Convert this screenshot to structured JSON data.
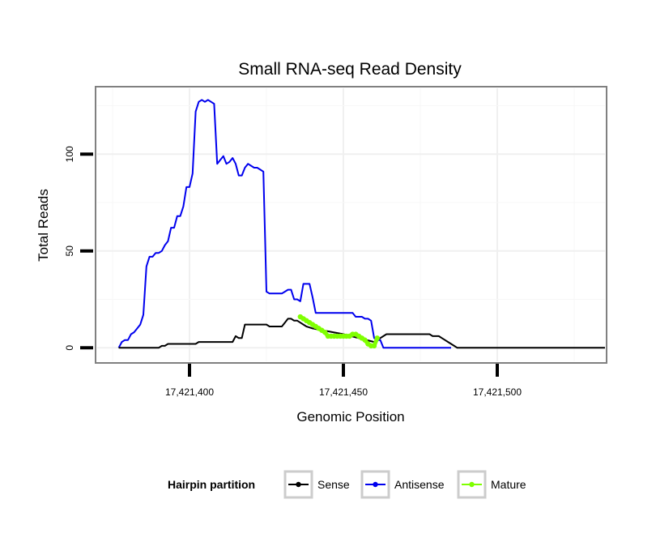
{
  "chart_data": {
    "type": "line",
    "title": "Small RNA-seq Read Density",
    "xlabel": "Genomic Position",
    "ylabel": "Total Reads",
    "xlim": [
      17421370,
      17421535
    ],
    "ylim": [
      -7,
      134
    ],
    "xticks": [
      17421400,
      17421450,
      17421500
    ],
    "xtick_labels": [
      "17,421,400",
      "17,421,450",
      "17,421,500"
    ],
    "yticks": [
      0,
      50,
      100
    ],
    "ytick_labels": [
      "0",
      "50",
      "100"
    ],
    "grid": true,
    "legend": {
      "title": "Hairpin partition",
      "position": "bottom",
      "entries": [
        {
          "name": "Sense",
          "color": "#000000"
        },
        {
          "name": "Antisense",
          "color": "#0000ee"
        },
        {
          "name": "Mature",
          "color": "#7fff00"
        }
      ]
    },
    "series": [
      {
        "name": "Antisense",
        "color": "#0000ee",
        "x": [
          17421377,
          17421378,
          17421379,
          17421380,
          17421381,
          17421382,
          17421383,
          17421384,
          17421385,
          17421386,
          17421387,
          17421388,
          17421389,
          17421390,
          17421391,
          17421392,
          17421393,
          17421394,
          17421395,
          17421396,
          17421397,
          17421398,
          17421399,
          17421400,
          17421401,
          17421402,
          17421403,
          17421404,
          17421405,
          17421406,
          17421407,
          17421408,
          17421409,
          17421410,
          17421411,
          17421412,
          17421413,
          17421414,
          17421415,
          17421416,
          17421417,
          17421418,
          17421419,
          17421420,
          17421421,
          17421422,
          17421423,
          17421424,
          17421425,
          17421426,
          17421427,
          17421428,
          17421429,
          17421430,
          17421431,
          17421432,
          17421433,
          17421434,
          17421435,
          17421436,
          17421437,
          17421438,
          17421439,
          17421440,
          17421441,
          17421442,
          17421443,
          17421444,
          17421445,
          17421446,
          17421447,
          17421448,
          17421449,
          17421450,
          17421451,
          17421452,
          17421453,
          17421454,
          17421455,
          17421456,
          17421457,
          17421458,
          17421459,
          17421460,
          17421461,
          17421462,
          17421463,
          17421464,
          17421465,
          17421466,
          17421467,
          17421468,
          17421469,
          17421470,
          17421471,
          17421472,
          17421473,
          17421474,
          17421475,
          17421476,
          17421477,
          17421478,
          17421479,
          17421480,
          17421481,
          17421482,
          17421483,
          17421484,
          17421485
        ],
        "y": [
          0,
          3,
          4,
          4,
          7,
          8,
          10,
          12,
          17,
          42,
          47,
          47,
          49,
          49,
          50,
          53,
          55,
          62,
          62,
          68,
          68,
          73,
          83,
          83,
          90,
          122,
          127,
          128,
          127,
          128,
          127,
          126,
          95,
          97,
          99,
          95,
          96,
          98,
          95,
          89,
          89,
          93,
          95,
          94,
          93,
          93,
          92,
          91,
          29,
          28,
          28,
          28,
          28,
          28,
          29,
          30,
          30,
          25,
          25,
          24,
          33,
          33,
          33,
          26,
          18,
          18,
          18,
          18,
          18,
          18,
          18,
          18,
          18,
          18,
          18,
          18,
          18,
          16,
          16,
          16,
          15,
          15,
          14,
          5,
          4,
          4,
          0,
          0,
          0,
          0,
          0,
          0,
          0,
          0,
          0,
          0,
          0,
          0,
          0,
          0,
          0,
          0,
          0,
          0,
          0,
          0,
          0,
          0,
          0
        ]
      },
      {
        "name": "Sense",
        "color": "#000000",
        "x": [
          17421377,
          17421390,
          17421391,
          17421392,
          17421393,
          17421402,
          17421403,
          17421414,
          17421415,
          17421416,
          17421417,
          17421418,
          17421425,
          17421426,
          17421430,
          17421431,
          17421432,
          17421433,
          17421434,
          17421435,
          17421436,
          17421437,
          17421438,
          17421440,
          17421450,
          17421460,
          17421461,
          17421462,
          17421463,
          17421464,
          17421465,
          17421466,
          17421467,
          17421468,
          17421478,
          17421479,
          17421481,
          17421482,
          17421483,
          17421484,
          17421485,
          17421486,
          17421487,
          17421492,
          17421535
        ],
        "y": [
          0,
          0,
          1,
          1,
          2,
          2,
          3,
          3,
          6,
          5,
          5,
          12,
          12,
          11,
          11,
          13,
          15,
          15,
          14,
          14,
          13,
          12,
          11,
          10,
          7,
          3,
          4,
          5,
          6,
          7,
          7,
          7,
          7,
          7,
          7,
          6,
          6,
          5,
          4,
          3,
          2,
          1,
          0,
          0,
          0
        ]
      },
      {
        "name": "Mature",
        "color": "#7fff00",
        "x": [
          17421436,
          17421437,
          17421438,
          17421439,
          17421440,
          17421441,
          17421442,
          17421443,
          17421444,
          17421445,
          17421446,
          17421447,
          17421448,
          17421449,
          17421450,
          17421451,
          17421452,
          17421453,
          17421454,
          17421455,
          17421456,
          17421457,
          17421458,
          17421459,
          17421460,
          17421461
        ],
        "y": [
          16,
          15,
          14,
          13,
          12,
          11,
          10,
          9,
          8,
          6,
          6,
          6,
          6,
          6,
          6,
          6,
          6,
          7,
          7,
          6,
          5,
          4,
          2,
          1,
          1,
          5
        ]
      }
    ]
  }
}
